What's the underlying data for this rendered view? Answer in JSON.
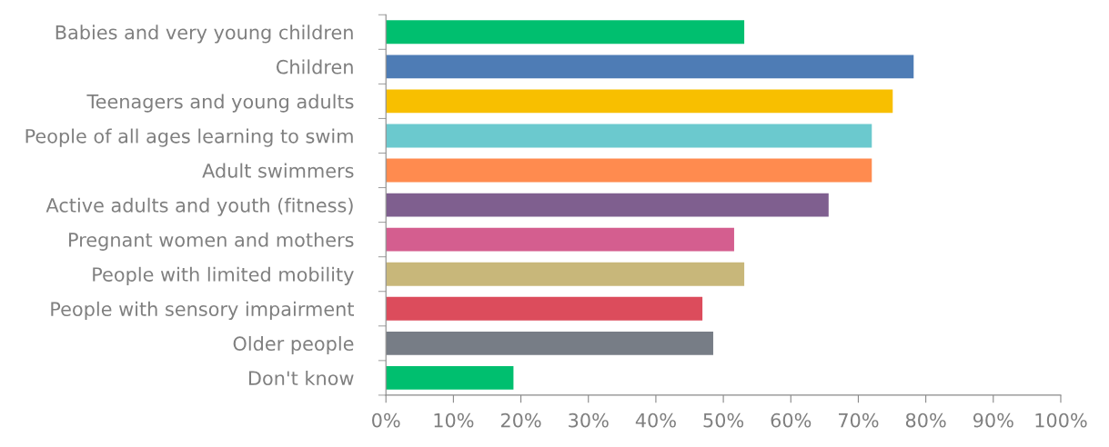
{
  "chart_data": {
    "type": "bar",
    "orientation": "horizontal",
    "categories": [
      "Babies and very young children",
      "Children",
      "Teenagers and young adults",
      "People of all ages learning to swim",
      "Adult swimmers",
      "Active adults and youth (fitness)",
      "Pregnant women and mothers",
      "People with limited mobility",
      "People with sensory impairment",
      "Older people",
      "Don't know"
    ],
    "values": [
      53.1,
      78.2,
      75.1,
      72.0,
      72.0,
      65.6,
      51.6,
      53.1,
      46.9,
      48.5,
      18.9
    ],
    "colors": [
      "#00bf6f",
      "#4e7cb5",
      "#f8bf00",
      "#6bc9ce",
      "#ff8b4f",
      "#7f5f8f",
      "#d45e8f",
      "#c8b77a",
      "#dc4c5c",
      "#777d86",
      "#00bf6f"
    ],
    "xlim": [
      0,
      100
    ],
    "xticks": [
      {
        "value": 0,
        "label": "0%"
      },
      {
        "value": 10,
        "label": "10%"
      },
      {
        "value": 20,
        "label": "20%"
      },
      {
        "value": 30,
        "label": "30%"
      },
      {
        "value": 40,
        "label": "40%"
      },
      {
        "value": 50,
        "label": "50%"
      },
      {
        "value": 60,
        "label": "60%"
      },
      {
        "value": 70,
        "label": "70%"
      },
      {
        "value": 80,
        "label": "80%"
      },
      {
        "value": 90,
        "label": "90%"
      },
      {
        "value": 100,
        "label": "100%"
      }
    ],
    "grid": false,
    "legend": false
  }
}
